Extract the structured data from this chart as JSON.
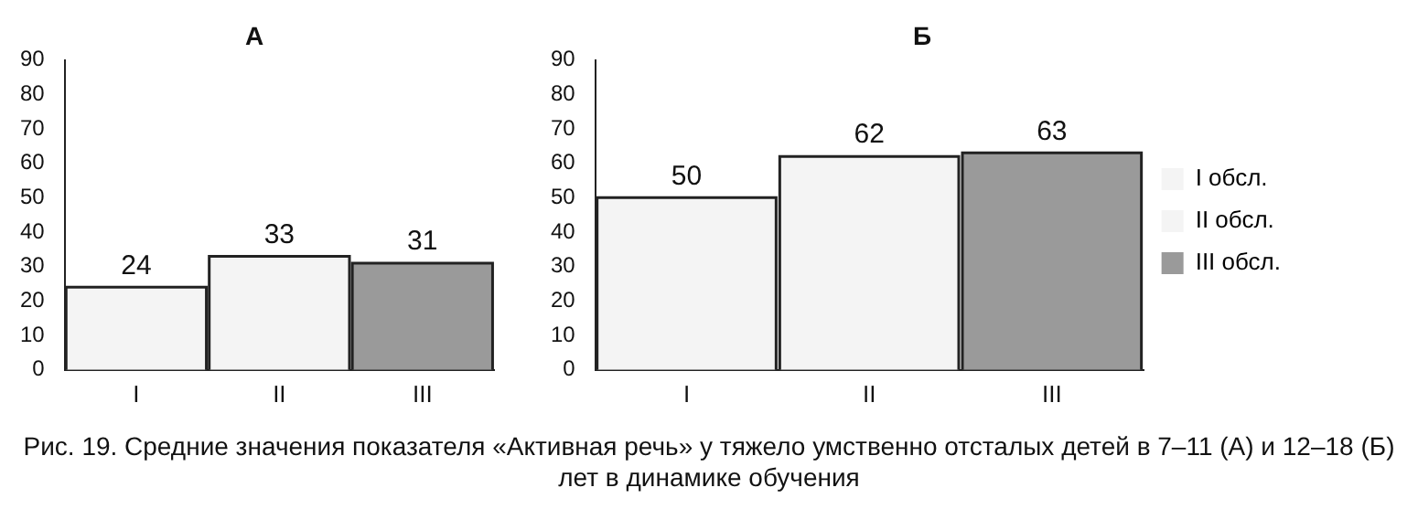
{
  "chart_data": [
    {
      "type": "bar",
      "title": "А",
      "categories": [
        "I",
        "II",
        "III"
      ],
      "series": [
        {
          "color": "#f4f4f4",
          "values": [
            24,
            null,
            null
          ]
        },
        {
          "color": "#f4f4f4",
          "values": [
            null,
            33,
            null
          ]
        },
        {
          "color": "#9a9a9a",
          "values": [
            null,
            null,
            31
          ]
        }
      ],
      "ylim": [
        0,
        90
      ],
      "yticks": [
        0,
        10,
        20,
        30,
        40,
        50,
        60,
        70,
        80,
        90
      ],
      "grid": false,
      "legend": false,
      "data_labels": true,
      "annotations": [
        "Рис. 19. Средние значения показателя «Активная речь» у тяжело умственно отсталых детей в 7–11 (А) и 12–18 (Б) лет в динамике обучения"
      ]
    },
    {
      "type": "bar",
      "title": "Б",
      "categories": [
        "I",
        "II",
        "III"
      ],
      "series": [
        {
          "name": "I обсл.",
          "color": "#f4f4f4",
          "values": [
            50,
            null,
            null
          ]
        },
        {
          "name": "II обсл.",
          "color": "#f4f4f4",
          "values": [
            null,
            62,
            null
          ]
        },
        {
          "name": "III обсл.",
          "color": "#9a9a9a",
          "values": [
            null,
            null,
            63
          ]
        }
      ],
      "ylim": [
        0,
        90
      ],
      "yticks": [
        0,
        10,
        20,
        30,
        40,
        50,
        60,
        70,
        80,
        90
      ],
      "grid": false,
      "legend": "right",
      "data_labels": true
    }
  ]
}
